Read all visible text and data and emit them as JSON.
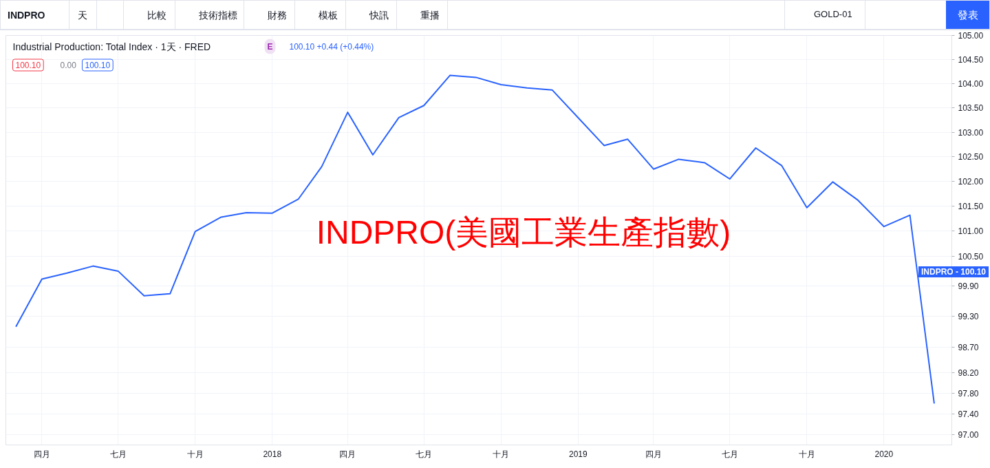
{
  "chart_data": {
    "type": "line",
    "title": "INDPRO(美國工業生產指數)",
    "subtitle": "Industrial Production: Total Index · 1天 · FRED",
    "x": [
      "2017-03",
      "2017-04",
      "2017-05",
      "2017-06",
      "2017-07",
      "2017-08",
      "2017-09",
      "2017-10",
      "2017-11",
      "2017-12",
      "2018-01",
      "2018-02",
      "2018-03",
      "2018-04",
      "2018-05",
      "2018-06",
      "2018-07",
      "2018-08",
      "2018-09",
      "2018-10",
      "2018-11",
      "2018-12",
      "2019-01",
      "2019-02",
      "2019-03",
      "2019-04",
      "2019-05",
      "2019-06",
      "2019-07",
      "2019-08",
      "2019-09",
      "2019-10",
      "2019-11",
      "2019-12",
      "2020-01",
      "2020-02",
      "2020-03"
    ],
    "values": [
      99.1,
      100.04,
      100.16,
      100.3,
      100.2,
      99.71,
      99.75,
      100.99,
      101.28,
      101.37,
      101.36,
      101.64,
      102.3,
      103.41,
      102.54,
      103.3,
      103.55,
      104.17,
      104.13,
      103.98,
      103.91,
      103.87,
      103.3,
      102.73,
      102.86,
      102.25,
      102.45,
      102.38,
      102.05,
      102.68,
      102.32,
      101.47,
      101.99,
      101.62,
      101.09,
      101.32,
      97.6
    ],
    "color": "#2962ff",
    "xlim": [
      "2017-02-17",
      "2020-03-22"
    ],
    "xticks": [
      {
        "value": "2017-04",
        "label": "四月"
      },
      {
        "value": "2017-07",
        "label": "七月"
      },
      {
        "value": "2017-10",
        "label": "十月"
      },
      {
        "value": "2018-01",
        "label": "2018"
      },
      {
        "value": "2018-04",
        "label": "四月"
      },
      {
        "value": "2018-07",
        "label": "七月"
      },
      {
        "value": "2018-10",
        "label": "十月"
      },
      {
        "value": "2019-01",
        "label": "2019"
      },
      {
        "value": "2019-04",
        "label": "四月"
      },
      {
        "value": "2019-07",
        "label": "七月"
      },
      {
        "value": "2019-10",
        "label": "十月"
      },
      {
        "value": "2020-01",
        "label": "2020"
      }
    ],
    "ylim": [
      96.8,
      105.0
    ],
    "yticks": [
      {
        "value": 97.0,
        "label": "97.00"
      },
      {
        "value": 97.4,
        "label": "97.40"
      },
      {
        "value": 97.8,
        "label": "97.80"
      },
      {
        "value": 98.2,
        "label": "98.20"
      },
      {
        "value": 98.7,
        "label": "98.70"
      },
      {
        "value": 99.3,
        "label": "99.30"
      },
      {
        "value": 99.9,
        "label": "99.90"
      },
      {
        "value": 100.5,
        "label": "100.50"
      },
      {
        "value": 101.0,
        "label": "101.00"
      },
      {
        "value": 101.5,
        "label": "101.50"
      },
      {
        "value": 102.0,
        "label": "102.00"
      },
      {
        "value": 102.5,
        "label": "102.50"
      },
      {
        "value": 103.0,
        "label": "103.00"
      },
      {
        "value": 103.5,
        "label": "103.50"
      },
      {
        "value": 104.0,
        "label": "104.00"
      },
      {
        "value": 104.5,
        "label": "104.50"
      },
      {
        "value": 105.0,
        "label": "105.00"
      }
    ],
    "log": true,
    "grid": true,
    "annotations": [
      "E",
      "100.10 +0.44 (+0.44%)",
      "100.10",
      "0.00",
      "100.10",
      "INDPRO - 100.10",
      "INDPRO",
      "天",
      "比較",
      "技術指標",
      "財務",
      "模板",
      "快訊",
      "重播",
      "GOLD-01",
      "發表"
    ]
  }
}
